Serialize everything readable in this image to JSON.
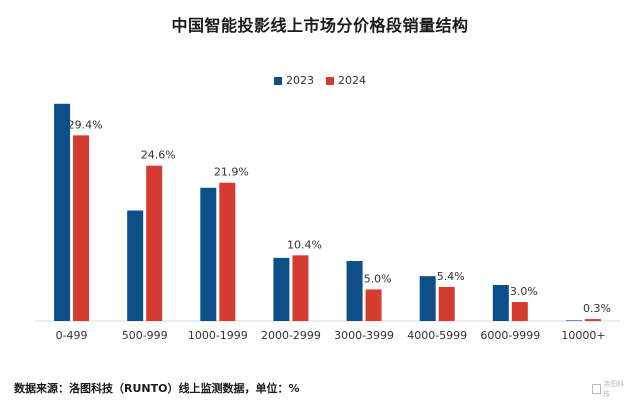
{
  "chart_data": {
    "type": "bar",
    "title": "中国智能投影线上市场分价格段销量结构",
    "categories": [
      "0-499",
      "500-999",
      "1000-1999",
      "2000-2999",
      "3000-3999",
      "4000-5999",
      "6000-9999",
      "10000+"
    ],
    "series": [
      {
        "name": "2023",
        "color": "#0d5089",
        "values": [
          34.4,
          17.5,
          21.1,
          10.0,
          9.5,
          7.1,
          5.7,
          0.1
        ]
      },
      {
        "name": "2024",
        "color": "#d33c2f",
        "values": [
          29.4,
          24.6,
          21.9,
          10.4,
          5.0,
          5.4,
          3.0,
          0.3
        ]
      }
    ],
    "data_labels": [
      "29.4%",
      "24.6%",
      "21.9%",
      "10.4%",
      "5.0%",
      "5.4%",
      "3.0%",
      "0.3%"
    ],
    "ylim": [
      0,
      35
    ],
    "legend_position": "top-center",
    "grid": false
  },
  "source_note": "数据来源：洛图科技（RUNTO）线上监测数据，单位：%",
  "logo_text": "洛图科技"
}
